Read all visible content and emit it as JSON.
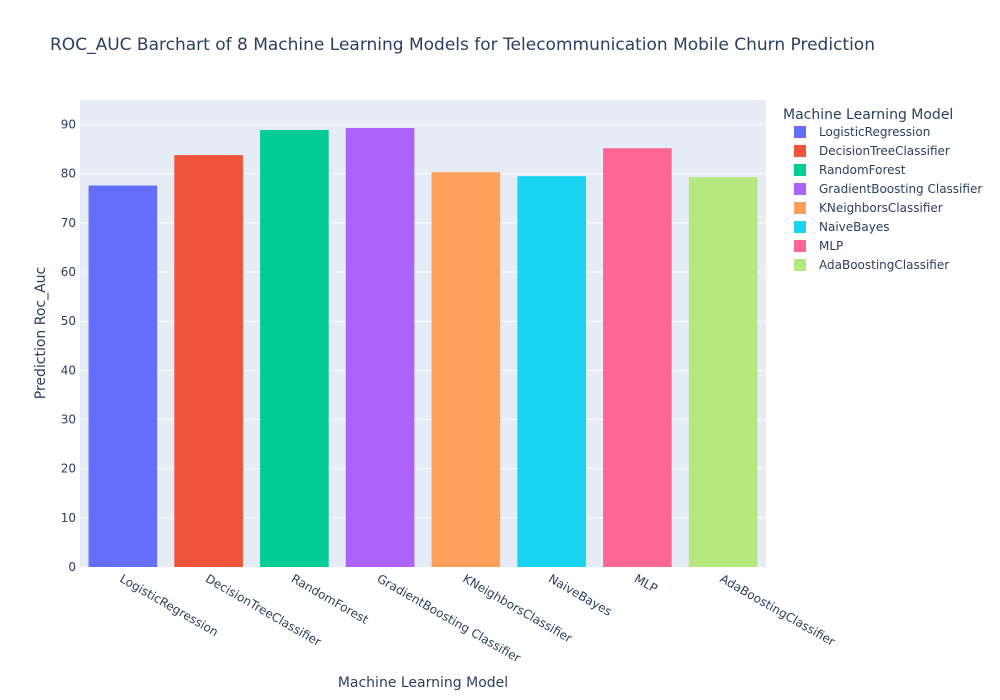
{
  "chart_data": {
    "type": "bar",
    "title": "ROC_AUC Barchart of 8 Machine Learning Models for Telecommunication Mobile Churn Prediction",
    "xlabel": "Machine Learning Model",
    "ylabel": "Prediction Roc_Auc",
    "ylim": [
      0,
      95
    ],
    "yticks": [
      0,
      10,
      20,
      30,
      40,
      50,
      60,
      70,
      80,
      90
    ],
    "grid": true,
    "legend": {
      "title": "Machine Learning Model",
      "placement": "right"
    },
    "categories": [
      "LogisticRegression",
      "DecisionTreeClassifier",
      "RandomForest",
      "GradientBoosting Classifier",
      "KNeighborsClassifier",
      "NaiveBayes",
      "MLP",
      "AdaBoostingClassifier"
    ],
    "values": [
      77.6,
      83.8,
      88.9,
      89.3,
      80.3,
      79.5,
      85.2,
      79.3
    ],
    "colors": [
      "#636efa",
      "#ef553b",
      "#00cc96",
      "#ab63fa",
      "#ffa15a",
      "#19d3f3",
      "#ff6692",
      "#b6e880"
    ],
    "background": "#e5ecf6"
  }
}
